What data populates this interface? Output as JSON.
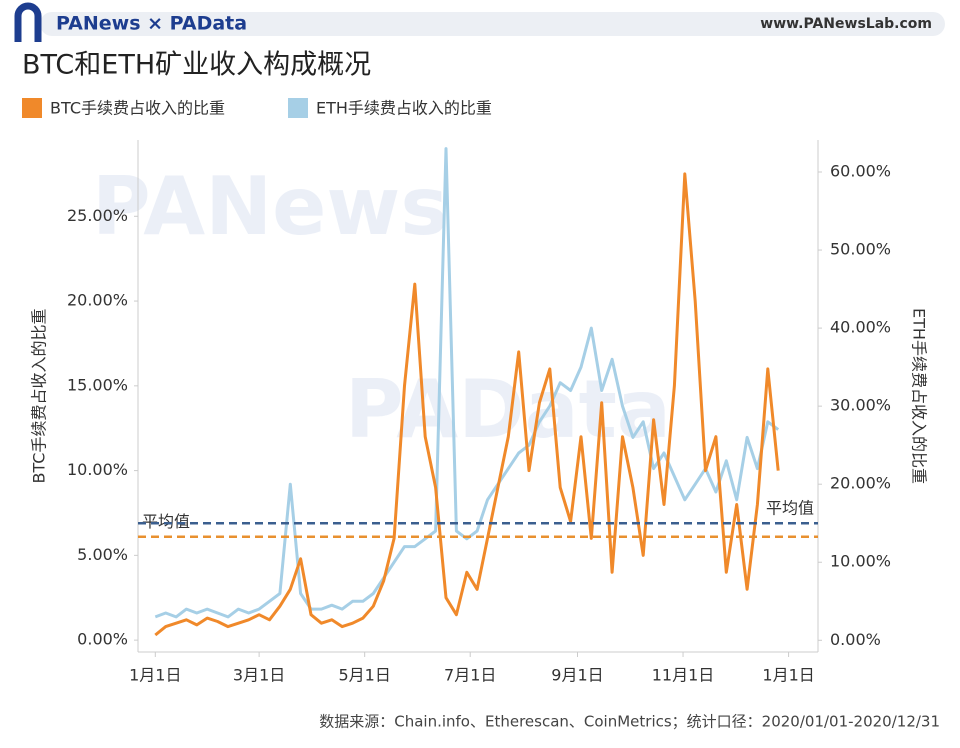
{
  "header": {
    "brand": "PANews × PAData",
    "site": "www.PANewsLab.com"
  },
  "watermarks": [
    "PANews",
    "PAData"
  ],
  "chart_data": {
    "type": "line",
    "title": "BTC和ETH矿业收入构成概况",
    "ylabel": "BTC手续费占收入的比重",
    "y2label": "ETH手续费占收入的比重",
    "x": [
      0,
      6,
      12,
      18,
      24,
      30,
      36,
      42,
      48,
      54,
      60,
      66,
      72,
      78,
      84,
      90,
      96,
      102,
      108,
      114,
      120,
      126,
      132,
      138,
      144,
      150,
      156,
      162,
      168,
      174,
      180,
      186,
      192,
      198,
      204,
      210,
      216,
      222,
      228,
      234,
      240,
      246,
      252,
      258,
      264,
      270,
      276,
      282,
      288,
      294,
      300,
      306,
      312,
      318,
      324,
      330,
      336,
      342,
      348,
      354,
      360
    ],
    "xlim": [
      -10,
      383
    ],
    "xticks": [
      {
        "value": 0,
        "label": "1月1日"
      },
      {
        "value": 60,
        "label": "3月1日"
      },
      {
        "value": 121,
        "label": "5月1日"
      },
      {
        "value": 182,
        "label": "7月1日"
      },
      {
        "value": 244,
        "label": "9月1日"
      },
      {
        "value": 305,
        "label": "11月1日"
      },
      {
        "value": 366,
        "label": "1月1日"
      }
    ],
    "ylim": [
      -0.7,
      29.5
    ],
    "yticks": [
      {
        "value": 0,
        "label": "0.00%"
      },
      {
        "value": 5,
        "label": "5.00%"
      },
      {
        "value": 10,
        "label": "10.00%"
      },
      {
        "value": 15,
        "label": "15.00%"
      },
      {
        "value": 20,
        "label": "20.00%"
      },
      {
        "value": 25,
        "label": "25.00%"
      }
    ],
    "y2lim": [
      -1.5,
      64.1
    ],
    "y2ticks": [
      {
        "value": 0,
        "label": "0.00%"
      },
      {
        "value": 10,
        "label": "10.00%"
      },
      {
        "value": 20,
        "label": "20.00%"
      },
      {
        "value": 30,
        "label": "30.00%"
      },
      {
        "value": 40,
        "label": "40.00%"
      },
      {
        "value": 50,
        "label": "50.00%"
      },
      {
        "value": 60,
        "label": "60.00%"
      }
    ],
    "grid": false,
    "series": [
      {
        "name": "BTC手续费占收入的比重",
        "color": "#f0892a",
        "values": [
          0.3,
          0.8,
          1.0,
          1.2,
          0.9,
          1.3,
          1.1,
          0.8,
          1.0,
          1.2,
          1.5,
          1.2,
          2.0,
          3.0,
          4.8,
          1.5,
          1.0,
          1.2,
          0.8,
          1.0,
          1.3,
          2.0,
          3.5,
          6.0,
          15,
          21,
          12,
          9,
          2.5,
          1.5,
          4,
          3,
          6,
          9,
          12,
          17,
          10,
          14,
          16,
          9,
          7,
          12,
          6,
          14,
          4,
          12,
          9,
          5,
          13,
          8,
          15,
          27.5,
          20,
          10,
          12,
          4,
          8,
          3,
          8,
          16,
          10
        ]
      },
      {
        "name": "ETH手续费占收入的比重",
        "color": "#a6cfe6",
        "axis": "y2",
        "values": [
          3,
          3.5,
          3,
          4,
          3.5,
          4,
          3.5,
          3,
          4,
          3.5,
          4,
          5,
          6,
          20,
          6,
          4,
          4,
          4.5,
          4,
          5,
          5,
          6,
          8,
          10,
          12,
          12,
          13,
          14,
          63,
          14,
          13,
          14,
          18,
          20,
          22,
          24,
          25,
          28,
          30,
          33,
          32,
          35,
          40,
          32,
          36,
          30,
          26,
          28,
          22,
          24,
          21,
          18,
          20,
          22,
          19,
          23,
          18,
          26,
          22,
          28,
          27
        ]
      }
    ],
    "avg_lines": [
      {
        "label": "平均值",
        "value": 6.1,
        "color": "#e8902f"
      },
      {
        "label": "平均值",
        "value": 15.0,
        "axis": "y2",
        "color": "#3b5f8f"
      }
    ],
    "source": "数据来源：Chain.info、Etherescan、CoinMetrics；统计口径：2020/01/01-2020/12/31"
  }
}
